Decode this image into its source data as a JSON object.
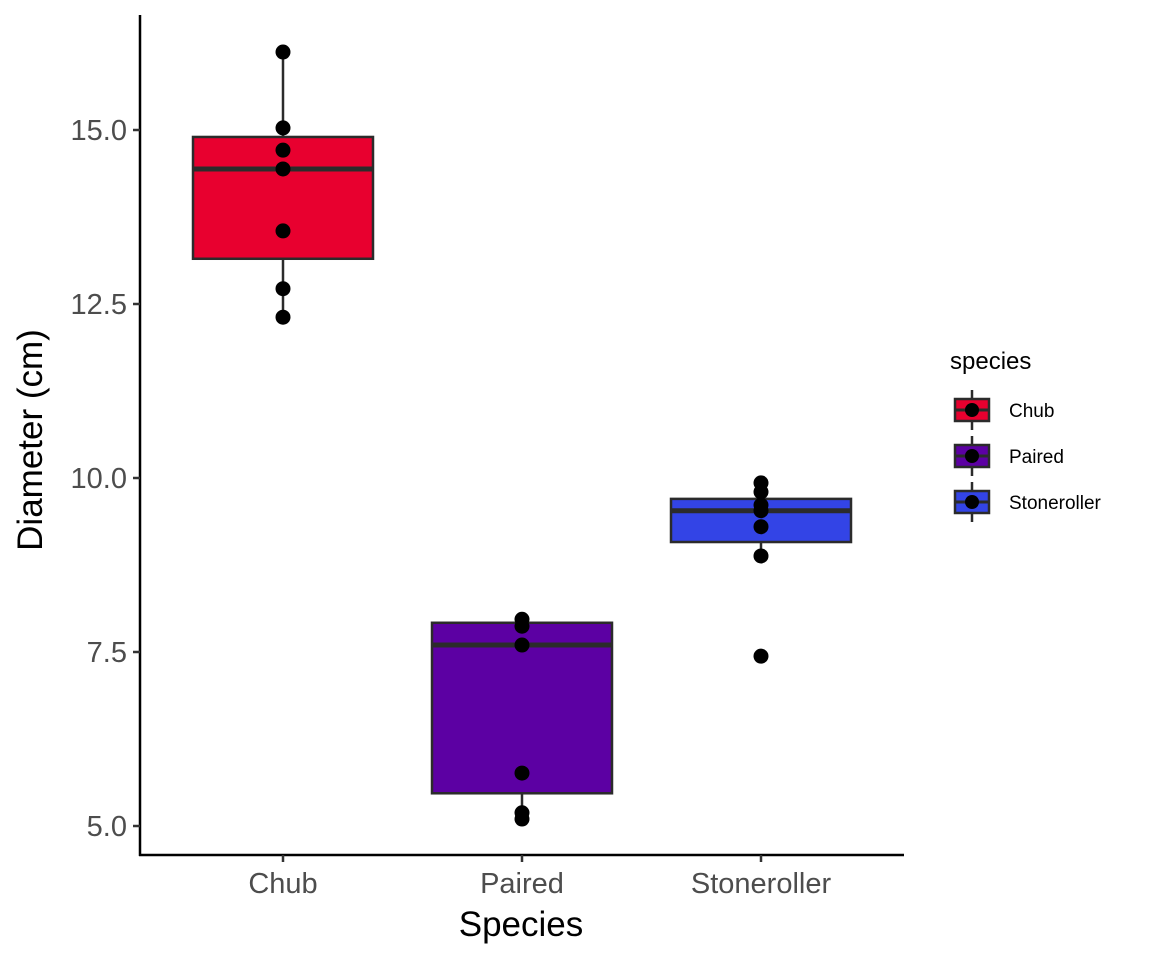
{
  "chart_data": {
    "type": "box",
    "title": "",
    "xlabel": "Species",
    "ylabel": "Diameter (cm)",
    "ylim": [
      4.6,
      16.7
    ],
    "yticks": [
      5.0,
      7.5,
      10.0,
      12.5,
      15.0
    ],
    "ytick_labels": [
      "5.0",
      "7.5",
      "10.0",
      "12.5",
      "15.0"
    ],
    "categories": [
      "Chub",
      "Paired",
      "Stoneroller"
    ],
    "grid": false,
    "legend": {
      "title": "species",
      "position": "right",
      "entries": [
        {
          "label": "Chub",
          "color": "#E8002F"
        },
        {
          "label": "Paired",
          "color": "#5C00A3"
        },
        {
          "label": "Stoneroller",
          "color": "#3344E6"
        }
      ]
    },
    "series": [
      {
        "name": "Chub",
        "color": "#E8002F",
        "box": {
          "whisker_low": 12.31,
          "q1": 13.15,
          "median": 14.44,
          "q3": 14.9,
          "whisker_high": 16.12
        },
        "points": [
          16.12,
          15.03,
          14.71,
          14.44,
          13.55,
          12.72,
          12.31
        ]
      },
      {
        "name": "Paired",
        "color": "#5C00A3",
        "box": {
          "whisker_low": 5.1,
          "q1": 5.47,
          "median": 7.6,
          "q3": 7.92,
          "whisker_high": 7.97
        },
        "points": [
          7.97,
          7.87,
          7.6,
          5.76,
          5.19,
          5.1
        ]
      },
      {
        "name": "Stoneroller",
        "color": "#3344E6",
        "box": {
          "whisker_low": 8.88,
          "q1": 9.08,
          "median": 9.53,
          "q3": 9.7,
          "whisker_high": 9.93
        },
        "points": [
          9.93,
          9.8,
          9.61,
          9.53,
          9.3,
          8.88,
          7.44
        ]
      }
    ]
  }
}
